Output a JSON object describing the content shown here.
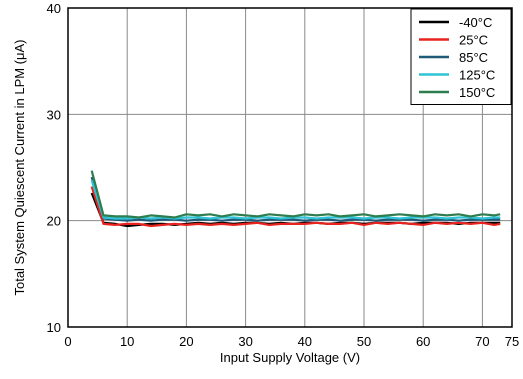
{
  "chart_data": {
    "type": "line",
    "xlabel": "Input Supply Voltage (V)",
    "ylabel": "Total System Quiescent Current in LPM (μA)",
    "xlim": [
      0,
      75
    ],
    "ylim": [
      10,
      40
    ],
    "xticks": [
      0,
      10,
      20,
      30,
      40,
      50,
      60,
      70,
      75
    ],
    "xtick_labels": [
      "0",
      "10",
      "20",
      "30",
      "40",
      "50",
      "60",
      "70",
      "75"
    ],
    "yticks": [
      10,
      20,
      30,
      40
    ],
    "ytick_labels": [
      "10",
      "20",
      "30",
      "40"
    ],
    "grid": true,
    "legend_position": "top-right",
    "series": [
      {
        "name": "-40°C",
        "color": "#000000",
        "x": [
          4,
          6,
          8,
          10,
          12,
          14,
          16,
          18,
          20,
          22,
          24,
          26,
          28,
          30,
          32,
          34,
          36,
          38,
          40,
          42,
          44,
          46,
          48,
          50,
          52,
          54,
          56,
          58,
          60,
          62,
          64,
          66,
          68,
          70,
          72,
          73
        ],
        "values": [
          22.6,
          19.8,
          19.7,
          19.5,
          19.6,
          19.7,
          19.7,
          19.6,
          19.7,
          19.8,
          19.7,
          19.8,
          19.7,
          19.8,
          19.8,
          19.7,
          19.8,
          19.7,
          19.8,
          19.8,
          19.7,
          19.8,
          19.8,
          19.7,
          19.8,
          19.8,
          19.8,
          19.7,
          19.8,
          19.8,
          19.8,
          19.7,
          19.8,
          19.8,
          19.8,
          19.8
        ]
      },
      {
        "name": "25°C",
        "color": "#e8231f",
        "x": [
          4,
          6,
          8,
          10,
          12,
          14,
          16,
          18,
          20,
          22,
          24,
          26,
          28,
          30,
          32,
          34,
          36,
          38,
          40,
          42,
          44,
          46,
          48,
          50,
          52,
          54,
          56,
          58,
          60,
          62,
          64,
          66,
          68,
          70,
          72,
          73
        ],
        "values": [
          23.2,
          19.7,
          19.6,
          19.7,
          19.7,
          19.5,
          19.6,
          19.7,
          19.6,
          19.7,
          19.6,
          19.7,
          19.6,
          19.7,
          19.8,
          19.6,
          19.7,
          19.7,
          19.7,
          19.8,
          19.7,
          19.7,
          19.8,
          19.6,
          19.8,
          19.7,
          19.8,
          19.7,
          19.6,
          19.8,
          19.7,
          19.8,
          19.7,
          19.8,
          19.6,
          19.7
        ]
      },
      {
        "name": "85°C",
        "color": "#1f5a78",
        "x": [
          4,
          6,
          8,
          10,
          12,
          14,
          16,
          18,
          20,
          22,
          24,
          26,
          28,
          30,
          32,
          34,
          36,
          38,
          40,
          42,
          44,
          46,
          48,
          50,
          52,
          54,
          56,
          58,
          60,
          62,
          64,
          66,
          68,
          70,
          72,
          73
        ],
        "values": [
          24.1,
          20.2,
          20.1,
          20.0,
          20.1,
          20.0,
          20.1,
          20.1,
          20.0,
          20.1,
          20.1,
          20.0,
          20.1,
          20.1,
          20.0,
          20.1,
          20.1,
          20.1,
          20.0,
          20.1,
          20.1,
          20.0,
          20.1,
          20.1,
          20.0,
          20.1,
          20.1,
          20.1,
          20.0,
          20.1,
          20.1,
          20.0,
          20.1,
          20.1,
          20.1,
          20.1
        ]
      },
      {
        "name": "125°C",
        "color": "#2ec4d6",
        "x": [
          4,
          6,
          8,
          10,
          12,
          14,
          16,
          18,
          20,
          22,
          24,
          26,
          28,
          30,
          32,
          34,
          36,
          38,
          40,
          42,
          44,
          46,
          48,
          50,
          52,
          54,
          56,
          58,
          60,
          62,
          64,
          66,
          68,
          70,
          72,
          73
        ],
        "values": [
          23.8,
          20.3,
          20.2,
          20.2,
          20.3,
          20.2,
          20.3,
          20.2,
          20.3,
          20.3,
          20.2,
          20.3,
          20.3,
          20.2,
          20.3,
          20.3,
          20.2,
          20.3,
          20.3,
          20.2,
          20.3,
          20.3,
          20.3,
          20.2,
          20.3,
          20.3,
          20.2,
          20.3,
          20.3,
          20.3,
          20.2,
          20.3,
          20.3,
          20.2,
          20.3,
          20.3
        ]
      },
      {
        "name": "150°C",
        "color": "#2e7d4f",
        "x": [
          4,
          6,
          8,
          10,
          12,
          14,
          16,
          18,
          20,
          22,
          24,
          26,
          28,
          30,
          32,
          34,
          36,
          38,
          40,
          42,
          44,
          46,
          48,
          50,
          52,
          54,
          56,
          58,
          60,
          62,
          64,
          66,
          68,
          70,
          72,
          73
        ],
        "values": [
          24.7,
          20.5,
          20.4,
          20.4,
          20.3,
          20.5,
          20.4,
          20.3,
          20.6,
          20.5,
          20.6,
          20.4,
          20.6,
          20.5,
          20.4,
          20.6,
          20.5,
          20.4,
          20.6,
          20.5,
          20.6,
          20.4,
          20.5,
          20.6,
          20.4,
          20.5,
          20.6,
          20.5,
          20.4,
          20.6,
          20.5,
          20.6,
          20.4,
          20.6,
          20.5,
          20.6
        ]
      }
    ]
  }
}
